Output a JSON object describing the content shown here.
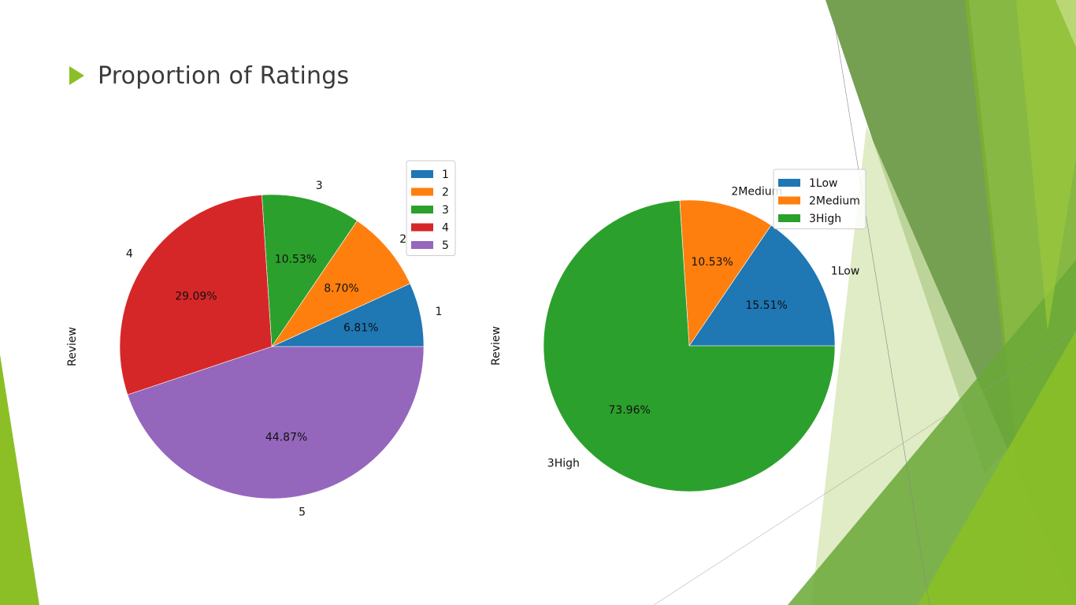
{
  "slide": {
    "title": "Proportion of Ratings",
    "bullet_color": "#8cbf26"
  },
  "chart_data": [
    {
      "type": "pie",
      "ylabel": "Review",
      "categories": [
        "1",
        "2",
        "3",
        "4",
        "5"
      ],
      "values": [
        6.81,
        8.7,
        10.53,
        29.09,
        44.87
      ],
      "pct_labels": [
        "6.81%",
        "8.70%",
        "10.53%",
        "29.09%",
        "44.87%"
      ],
      "colors": [
        "#1f77b4",
        "#ff7f0e",
        "#2ca02c",
        "#d62728",
        "#9467bd"
      ],
      "legend": [
        "1",
        "2",
        "3",
        "4",
        "5"
      ],
      "legend_position": "top-right"
    },
    {
      "type": "pie",
      "ylabel": "Review",
      "categories": [
        "1Low",
        "2Medium",
        "3High"
      ],
      "values": [
        15.51,
        10.53,
        73.96
      ],
      "pct_labels": [
        "15.51%",
        "10.53%",
        "73.96%"
      ],
      "colors": [
        "#1f77b4",
        "#ff7f0e",
        "#2ca02c"
      ],
      "legend": [
        "1Low",
        "2Medium",
        "3High"
      ],
      "legend_position": "top-right"
    }
  ]
}
